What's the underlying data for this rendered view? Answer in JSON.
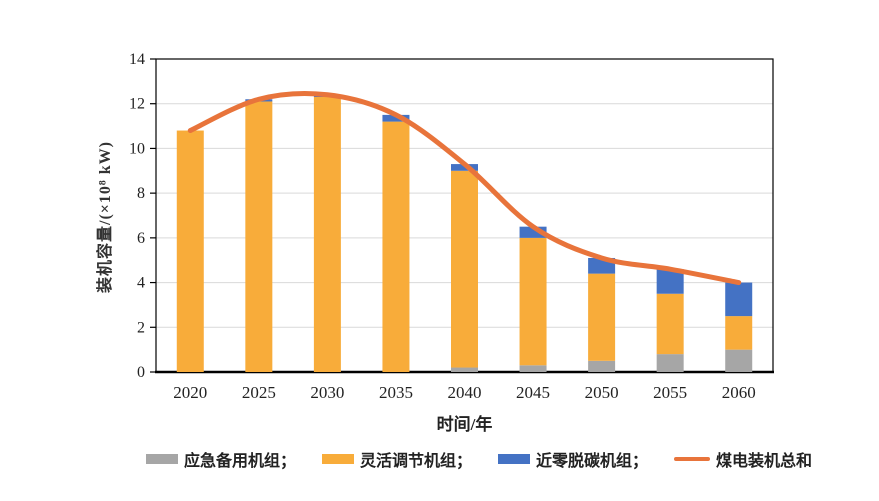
{
  "chart_data": {
    "type": "bar",
    "subtype": "stacked-bar-with-line-overlay",
    "categories": [
      "2020",
      "2025",
      "2030",
      "2035",
      "2040",
      "2045",
      "2050",
      "2055",
      "2060"
    ],
    "series": [
      {
        "name": "应急备用机组",
        "kind": "bar",
        "color": "#A6A6A6",
        "values": [
          0,
          0,
          0,
          0,
          0.2,
          0.3,
          0.5,
          0.8,
          1.0
        ]
      },
      {
        "name": "灵活调节机组",
        "kind": "bar",
        "color": "#F8AC3A",
        "values": [
          10.8,
          12.1,
          12.3,
          11.2,
          8.8,
          5.7,
          3.9,
          2.7,
          1.5
        ]
      },
      {
        "name": "近零脱碳机组",
        "kind": "bar",
        "color": "#4472C4",
        "values": [
          0,
          0.1,
          0.1,
          0.3,
          0.3,
          0.5,
          0.7,
          1.1,
          1.5
        ]
      },
      {
        "name": "煤电装机总和",
        "kind": "line",
        "color": "#E8743B",
        "values": [
          10.8,
          12.2,
          12.4,
          11.5,
          9.3,
          6.5,
          5.1,
          4.6,
          4.0
        ]
      }
    ],
    "title": "",
    "xlabel": "时间/年",
    "ylabel": "装机容量/(×10⁸ kW)",
    "ylim": [
      0,
      14
    ],
    "yticks": [
      0,
      2,
      4,
      6,
      8,
      10,
      12,
      14
    ],
    "grid": true,
    "gridline_color": "#D9D9D9",
    "axis_color": "#000000",
    "legend_position": "bottom"
  },
  "legend": {
    "items": [
      {
        "label": "应急备用机组；",
        "swatch": "gray-rect"
      },
      {
        "label": "灵活调节机组；",
        "swatch": "orange-rect"
      },
      {
        "label": "近零脱碳机组；",
        "swatch": "blue-rect"
      },
      {
        "label": "煤电装机总和",
        "swatch": "orange-line"
      }
    ]
  }
}
